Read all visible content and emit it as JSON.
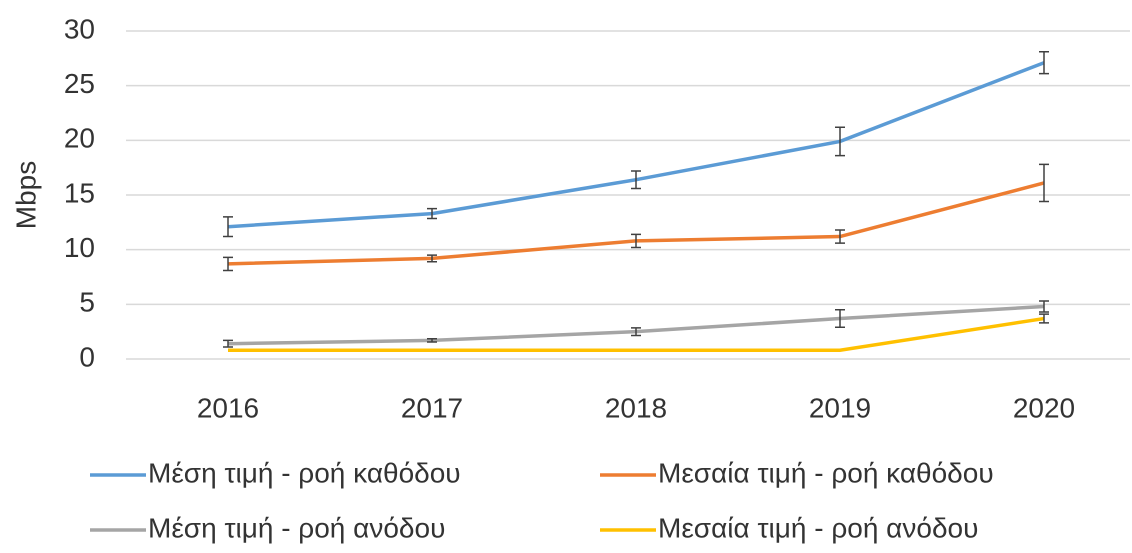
{
  "chart_data": {
    "type": "line",
    "ylabel": "Mbps",
    "categories": [
      "2016",
      "2017",
      "2018",
      "2019",
      "2020"
    ],
    "series": [
      {
        "name": "Μέση τιμή - ροή καθόδου",
        "color": "#5b9bd5",
        "values": [
          12.1,
          13.3,
          16.4,
          19.9,
          27.1
        ],
        "errors": [
          0.9,
          0.45,
          0.8,
          1.3,
          1.0
        ]
      },
      {
        "name": "Μεσαία τιμή - ροή καθόδου",
        "color": "#ed7d31",
        "values": [
          8.7,
          9.2,
          10.8,
          11.2,
          16.1
        ],
        "errors": [
          0.6,
          0.3,
          0.6,
          0.6,
          1.7
        ]
      },
      {
        "name": "Μέση τιμή - ροή ανόδου",
        "color": "#a5a5a5",
        "values": [
          1.4,
          1.7,
          2.5,
          3.7,
          4.8
        ],
        "errors": [
          0.3,
          0.15,
          0.35,
          0.8,
          0.5
        ]
      },
      {
        "name": "Μεσαία τιμή - ροή ανόδου",
        "color": "#ffc000",
        "values": [
          0.8,
          0.8,
          0.8,
          0.8,
          3.7
        ],
        "errors": [
          null,
          null,
          null,
          null,
          0.4
        ]
      }
    ],
    "ylim": [
      0,
      30
    ],
    "yticks": [
      0,
      5,
      10,
      15,
      20,
      25,
      30
    ],
    "grid": true
  }
}
